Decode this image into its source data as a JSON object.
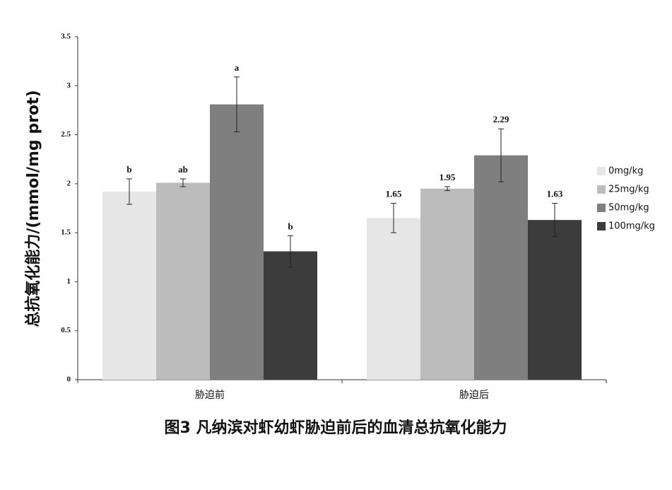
{
  "chart_data": {
    "type": "bar",
    "title": "图3 凡纳滨对虾幼虾胁迫前后的血清总抗氧化能力",
    "y_label": "总抗氧化能力/(mmol/mg prot)",
    "categories": [
      "胁迫前",
      "胁迫后"
    ],
    "series": [
      {
        "name": "0mg/kg",
        "color": "#e6e6e6",
        "values": [
          1.92,
          1.65
        ],
        "errors": [
          0.13,
          0.15
        ],
        "value_labels": [
          "b",
          "1.65"
        ]
      },
      {
        "name": "25mg/kg",
        "color": "#bcbcbc",
        "values": [
          2.01,
          1.95
        ],
        "errors": [
          0.04,
          0.02
        ],
        "value_labels": [
          "ab",
          "1.95"
        ]
      },
      {
        "name": "50mg/kg",
        "color": "#7f7f7f",
        "values": [
          2.81,
          2.29
        ],
        "errors": [
          0.28,
          0.27
        ],
        "value_labels": [
          "a",
          "2.29"
        ]
      },
      {
        "name": "100mg/kg",
        "color": "#3c3c3c",
        "values": [
          1.31,
          1.63
        ],
        "errors": [
          0.16,
          0.17
        ],
        "value_labels": [
          "b",
          "1.63"
        ]
      }
    ],
    "ylim": [
      0,
      3.5
    ],
    "yticks": [
      0,
      0.5,
      1,
      1.5,
      2,
      2.5,
      3,
      3.5
    ],
    "grid": false,
    "legend": "right"
  }
}
